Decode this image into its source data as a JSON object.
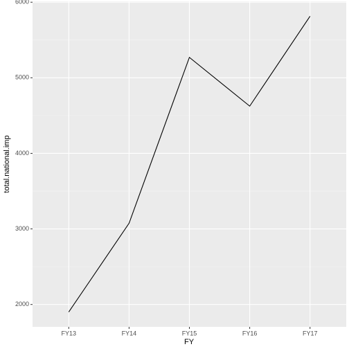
{
  "chart_data": {
    "type": "line",
    "categories": [
      "FY13",
      "FY14",
      "FY15",
      "FY16",
      "FY17"
    ],
    "series": [
      {
        "name": "total.national.imp",
        "color": "#000000",
        "values": [
          1900,
          3075,
          5270,
          4625,
          5815
        ]
      }
    ],
    "x_label": "FY",
    "y_label": "total.national.imp",
    "ylim": [
      1704,
      6011
    ],
    "yticks": [
      2000,
      3000,
      4000,
      5000,
      6000
    ],
    "grid": true
  }
}
